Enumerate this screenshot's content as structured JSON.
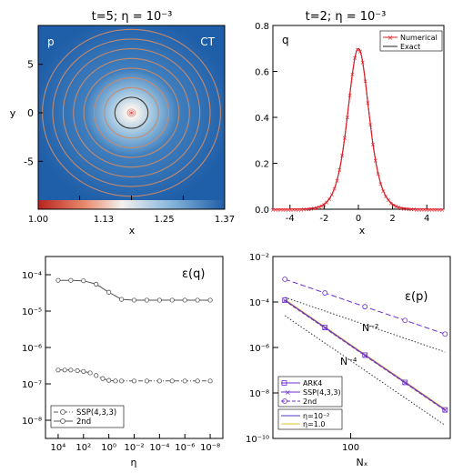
{
  "panels": {
    "p": {
      "title": "t=5; η = 10⁻³",
      "label": "p",
      "corner_label": "CT",
      "ylabel": "y",
      "xlabel": "x",
      "xticks": [
        "-5",
        "0",
        "5"
      ],
      "yticks": [
        "-5",
        "0",
        "5"
      ],
      "colorbar_ticks": [
        "1.00",
        "1.13",
        "1.25",
        "1.37"
      ],
      "colors": {
        "low": "#c8392b",
        "mid": "#f4f1ee",
        "high": "#1f5ea8",
        "contour": "#c98a6a"
      }
    },
    "q": {
      "title": "t=2; η = 10⁻³",
      "label": "q",
      "xlabel": "x",
      "xticks": [
        "-4",
        "-2",
        "0",
        "2",
        "4"
      ],
      "yticks": [
        "0.0",
        "0.2",
        "0.4",
        "0.6",
        "0.8"
      ],
      "legend": [
        "Numerical",
        "Exact"
      ],
      "colors": {
        "numerical": "#e0202a",
        "exact": "#222222"
      }
    },
    "eq": {
      "label": "ε(q)",
      "xlabel": "η",
      "xticks": [
        "10⁴",
        "10²",
        "10⁰",
        "10⁻²",
        "10⁻⁴",
        "10⁻⁶",
        "10⁻⁸"
      ],
      "yticks": [
        "10⁻⁴",
        "10⁻⁵",
        "10⁻⁶",
        "10⁻⁷",
        "10⁻⁸"
      ],
      "legend": [
        "SSP(4,3,3)",
        "2nd"
      ]
    },
    "ep": {
      "label": "ε(p)",
      "xlabel": "Nₓ",
      "xticks": [
        "100"
      ],
      "yticks": [
        "10⁻²",
        "10⁻⁴",
        "10⁻⁶",
        "10⁻⁸",
        "10⁻¹⁰"
      ],
      "slope_labels": [
        "N⁻²",
        "N⁻⁴"
      ],
      "legend_methods": [
        "ARK4",
        "SSP(4,3,3)",
        "2nd"
      ],
      "legend_eta": [
        "η=10⁻²",
        "η=1.0"
      ],
      "colors": {
        "method": "#6a2cd6",
        "eta_small": "#4a3ad0",
        "eta_one": "#e6c22a",
        "brown": "#8a5a3a"
      }
    }
  },
  "chart_data": [
    {
      "type": "heatmap",
      "title": "t=5; η = 10⁻³",
      "xlabel": "x",
      "ylabel": "y",
      "xlim": [
        -9,
        9
      ],
      "ylim": [
        -9,
        9
      ],
      "colorbar_range": [
        1.0,
        1.37
      ],
      "description_values": {
        "center_value": 1.0,
        "background_value": 1.37
      }
    },
    {
      "type": "line",
      "title": "t=2; η = 10⁻³",
      "xlabel": "x",
      "xlim": [
        -5,
        5
      ],
      "ylim": [
        0,
        0.8
      ],
      "series": [
        {
          "name": "Numerical",
          "x": [
            -5,
            -4,
            -3,
            -2.5,
            -2,
            -1.5,
            -1,
            -0.75,
            -0.5,
            -0.25,
            0,
            0.25,
            0.5,
            0.75,
            1,
            1.5,
            2,
            2.5,
            3,
            4,
            5
          ],
          "y": [
            0.0,
            0.0,
            0.005,
            0.012,
            0.03,
            0.08,
            0.2,
            0.32,
            0.47,
            0.63,
            0.7,
            0.63,
            0.47,
            0.32,
            0.2,
            0.08,
            0.03,
            0.012,
            0.005,
            0.0,
            0.0
          ]
        },
        {
          "name": "Exact",
          "x": [
            -5,
            -4,
            -3,
            -2.5,
            -2,
            -1.5,
            -1,
            -0.75,
            -0.5,
            -0.25,
            0,
            0.25,
            0.5,
            0.75,
            1,
            1.5,
            2,
            2.5,
            3,
            4,
            5
          ],
          "y": [
            0.0,
            0.0,
            0.005,
            0.012,
            0.03,
            0.08,
            0.2,
            0.32,
            0.47,
            0.63,
            0.7,
            0.63,
            0.47,
            0.32,
            0.2,
            0.08,
            0.03,
            0.012,
            0.005,
            0.0,
            0.0
          ]
        }
      ]
    },
    {
      "type": "line",
      "xlabel": "η",
      "log_x": true,
      "log_y": true,
      "x_reversed": true,
      "ylim": [
        1e-08,
        0.0003
      ],
      "series": [
        {
          "name": "SSP(4,3,3)",
          "x": [
            10000.0,
            3000.0,
            1000.0,
            300.0,
            100.0,
            30,
            10,
            3,
            1,
            0.3,
            0.1,
            0.01,
            0.001,
            0.0001,
            1e-05,
            1e-06,
            1e-07,
            1e-08
          ],
          "y": [
            2.4e-07,
            2.4e-07,
            2.4e-07,
            2.3e-07,
            2.2e-07,
            2e-07,
            1.7e-07,
            1.4e-07,
            1.25e-07,
            1.2e-07,
            1.2e-07,
            1.2e-07,
            1.2e-07,
            1.2e-07,
            1.2e-07,
            1.2e-07,
            1.2e-07,
            1.2e-07
          ]
        },
        {
          "name": "2nd",
          "x": [
            10000.0,
            1000.0,
            100.0,
            10,
            1,
            0.1,
            0.01,
            0.001,
            0.0001,
            1e-05,
            1e-06,
            1e-07,
            1e-08
          ],
          "y": [
            7e-05,
            7e-05,
            6.8e-05,
            5.5e-05,
            3.3e-05,
            2.1e-05,
            2e-05,
            2e-05,
            2e-05,
            2e-05,
            2e-05,
            2e-05,
            2e-05
          ]
        }
      ]
    },
    {
      "type": "line",
      "xlabel": "Nₓ",
      "log_x": true,
      "log_y": true,
      "xlim": [
        30,
        500
      ],
      "ylim": [
        1e-10,
        0.01
      ],
      "series": [
        {
          "name": "ARK4",
          "x": [
            32,
            64,
            128,
            256,
            512
          ],
          "y": [
            0.00012,
            7.5e-06,
            4.6e-07,
            2.9e-08,
            1.8e-09
          ]
        },
        {
          "name": "SSP(4,3,3)",
          "x": [
            32,
            64,
            128,
            256,
            512
          ],
          "y": [
            0.00012,
            7.5e-06,
            4.6e-07,
            2.9e-08,
            1.8e-09
          ]
        },
        {
          "name": "2nd",
          "x": [
            32,
            64,
            128,
            256,
            512
          ],
          "y": [
            0.001,
            0.00025,
            6.2e-05,
            1.55e-05,
            3.9e-06
          ]
        }
      ],
      "reference_lines": [
        {
          "name": "N⁻²",
          "x": [
            32,
            512
          ],
          "y": [
            0.00016,
            6.3e-07
          ]
        },
        {
          "name": "N⁻⁴",
          "x": [
            32,
            512
          ],
          "y": [
            2.5e-05,
            3.8e-10
          ]
        }
      ]
    }
  ]
}
